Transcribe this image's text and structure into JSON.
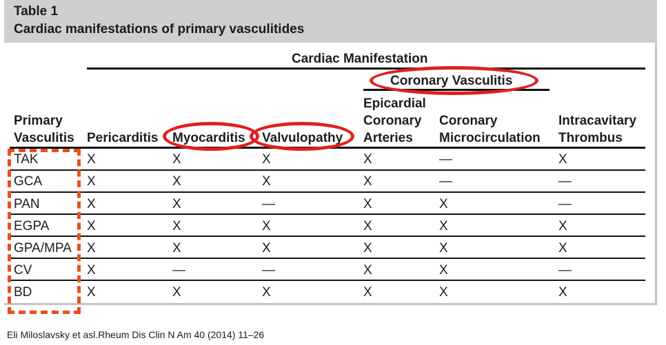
{
  "table": {
    "title_number": "Table 1",
    "title_text": "Cardiac manifestations of primary vasculitides",
    "group_header": "Cardiac Manifestation",
    "subgroup_header": "Coronary Vasculitis",
    "headers": {
      "primary_l1": "Primary",
      "primary_l2": "Vasculitis",
      "pericarditis": "Pericarditis",
      "myocarditis": "Myocarditis",
      "valvulopathy": "Valvulopathy",
      "epicardial_l1": "Epicardial",
      "epicardial_l2": "Coronary",
      "epicardial_l3": "Arteries",
      "coronary_l1": "Coronary",
      "coronary_l2": "Microcirculation",
      "intracavitary_l1": "Intracavitary",
      "intracavitary_l2": "Thrombus"
    },
    "rows": [
      {
        "name": "TAK",
        "cells": [
          "X",
          "X",
          "X",
          "X",
          "—",
          "X"
        ]
      },
      {
        "name": "GCA",
        "cells": [
          "X",
          "X",
          "X",
          "X",
          "—",
          "—"
        ]
      },
      {
        "name": "PAN",
        "cells": [
          "X",
          "X",
          "—",
          "X",
          "X",
          "—"
        ]
      },
      {
        "name": "EGPA",
        "cells": [
          "X",
          "X",
          "X",
          "X",
          "X",
          "X"
        ]
      },
      {
        "name": "GPA/MPA",
        "cells": [
          "X",
          "X",
          "X",
          "X",
          "X",
          "X"
        ]
      },
      {
        "name": "CV",
        "cells": [
          "X",
          "—",
          "—",
          "X",
          "X",
          "—"
        ]
      },
      {
        "name": "BD",
        "cells": [
          "X",
          "X",
          "X",
          "X",
          "X",
          "X"
        ]
      }
    ]
  },
  "annotations": {
    "highlight_color": "#e02020",
    "dashed_color": "#e8501f"
  },
  "citation": "Eli Miloslavsky et asl.Rheum Dis Clin N Am 40 (2014) 11–26"
}
